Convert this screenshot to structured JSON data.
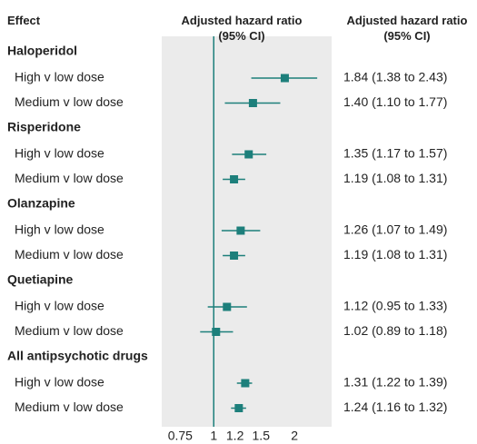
{
  "chart_data": {
    "type": "forest",
    "column_headers": {
      "effect": "Effect",
      "plot": "Adjusted hazard ratio (95% CI)",
      "values": "Adjusted hazard ratio (95% CI)"
    },
    "color": "#1d7f7b",
    "panel_color": "#ebebeb",
    "log_scale": true,
    "reference": 1,
    "xlim": [
      0.64,
      2.75
    ],
    "xticks": [
      0.75,
      1,
      1.2,
      1.5,
      2
    ],
    "groups": [
      {
        "name": "Haloperidol",
        "rows": [
          {
            "label": "High v low dose",
            "value": 1.84,
            "lower": 1.38,
            "upper": 2.43,
            "value_label": "1.84 (1.38 to 2.43)"
          },
          {
            "label": "Medium v low dose",
            "value": 1.4,
            "lower": 1.1,
            "upper": 1.77,
            "value_label": "1.40 (1.10 to 1.77)"
          }
        ]
      },
      {
        "name": "Risperidone",
        "rows": [
          {
            "label": "High v low dose",
            "value": 1.35,
            "lower": 1.17,
            "upper": 1.57,
            "value_label": "1.35 (1.17 to 1.57)"
          },
          {
            "label": "Medium v low dose",
            "value": 1.19,
            "lower": 1.08,
            "upper": 1.31,
            "value_label": "1.19 (1.08 to 1.31)"
          }
        ]
      },
      {
        "name": "Olanzapine",
        "rows": [
          {
            "label": "High v low dose",
            "value": 1.26,
            "lower": 1.07,
            "upper": 1.49,
            "value_label": "1.26 (1.07 to 1.49)"
          },
          {
            "label": "Medium v low dose",
            "value": 1.19,
            "lower": 1.08,
            "upper": 1.31,
            "value_label": "1.19 (1.08 to 1.31)"
          }
        ]
      },
      {
        "name": "Quetiapine",
        "rows": [
          {
            "label": "High v low dose",
            "value": 1.12,
            "lower": 0.95,
            "upper": 1.33,
            "value_label": "1.12 (0.95 to 1.33)"
          },
          {
            "label": "Medium v low dose",
            "value": 1.02,
            "lower": 0.89,
            "upper": 1.18,
            "value_label": "1.02 (0.89 to 1.18)"
          }
        ]
      },
      {
        "name": "All antipsychotic drugs",
        "rows": [
          {
            "label": "High v low dose",
            "value": 1.31,
            "lower": 1.22,
            "upper": 1.39,
            "value_label": "1.31 (1.22 to 1.39)"
          },
          {
            "label": "Medium v low dose",
            "value": 1.24,
            "lower": 1.16,
            "upper": 1.32,
            "value_label": "1.24 (1.16 to 1.32)"
          }
        ]
      }
    ]
  }
}
